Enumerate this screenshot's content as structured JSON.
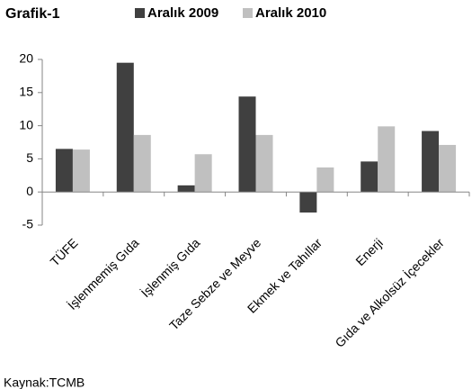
{
  "chart_data": {
    "type": "bar",
    "title": "Grafik-1",
    "source": "Kaynak:TCMB",
    "categories": [
      "TÜFE",
      "İşlenmemiş Gıda",
      "İşlenmiş Gıda",
      "Taze Sebze ve Meyve",
      "Ekmek ve Tahıllar",
      "Enerji",
      "Gıda ve Alkolsüz İçecekler"
    ],
    "series": [
      {
        "name": "Aralık 2009",
        "color": "#404040",
        "values": [
          6.5,
          19.5,
          1.0,
          14.4,
          -3.1,
          4.6,
          9.2
        ]
      },
      {
        "name": "Aralık 2010",
        "color": "#c0c0c0",
        "values": [
          6.4,
          8.6,
          5.7,
          8.6,
          3.7,
          9.9,
          7.1
        ]
      }
    ],
    "ylim": [
      -5,
      20
    ],
    "yticks": [
      -5,
      0,
      5,
      10,
      15,
      20
    ],
    "grid": false,
    "legend": "top"
  }
}
